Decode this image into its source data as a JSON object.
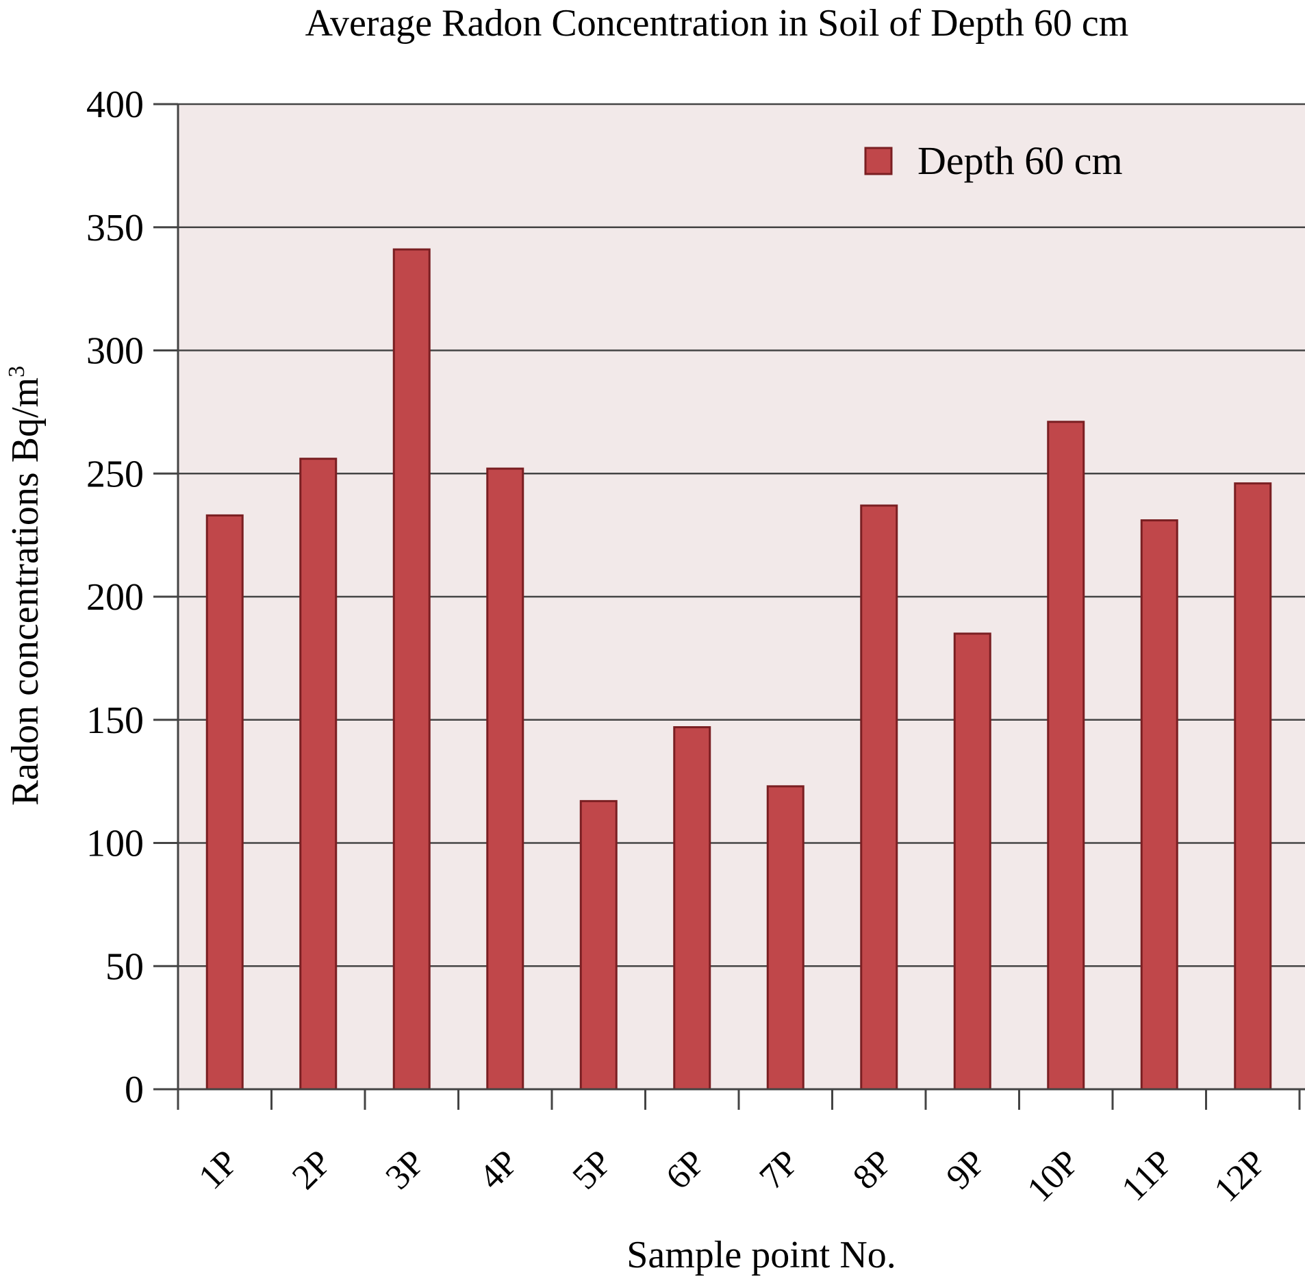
{
  "chart_data": {
    "type": "bar",
    "title": "Average Radon Concentration in Soil of Depth 60 cm",
    "xlabel": "Sample point No.",
    "ylabel": "Radon concentrations Bq/m",
    "ylabel_superscript": "3",
    "categories": [
      "1P",
      "2P",
      "3P",
      "4P",
      "5P",
      "6P",
      "7P",
      "8P",
      "9P",
      "10P",
      "11P",
      "12P"
    ],
    "series": [
      {
        "name": "Depth 60 cm",
        "color": "#c0474a",
        "values": [
          233,
          256,
          341,
          252,
          117,
          147,
          123,
          237,
          185,
          271,
          231,
          246
        ]
      }
    ],
    "ylim": [
      0,
      400
    ],
    "yticks": [
      0,
      50,
      100,
      150,
      200,
      250,
      300,
      350,
      400
    ],
    "grid": true,
    "legend_position": "top-right",
    "plot_background": "#f2e9e9",
    "bar_edge_color": "#7a1f22"
  }
}
